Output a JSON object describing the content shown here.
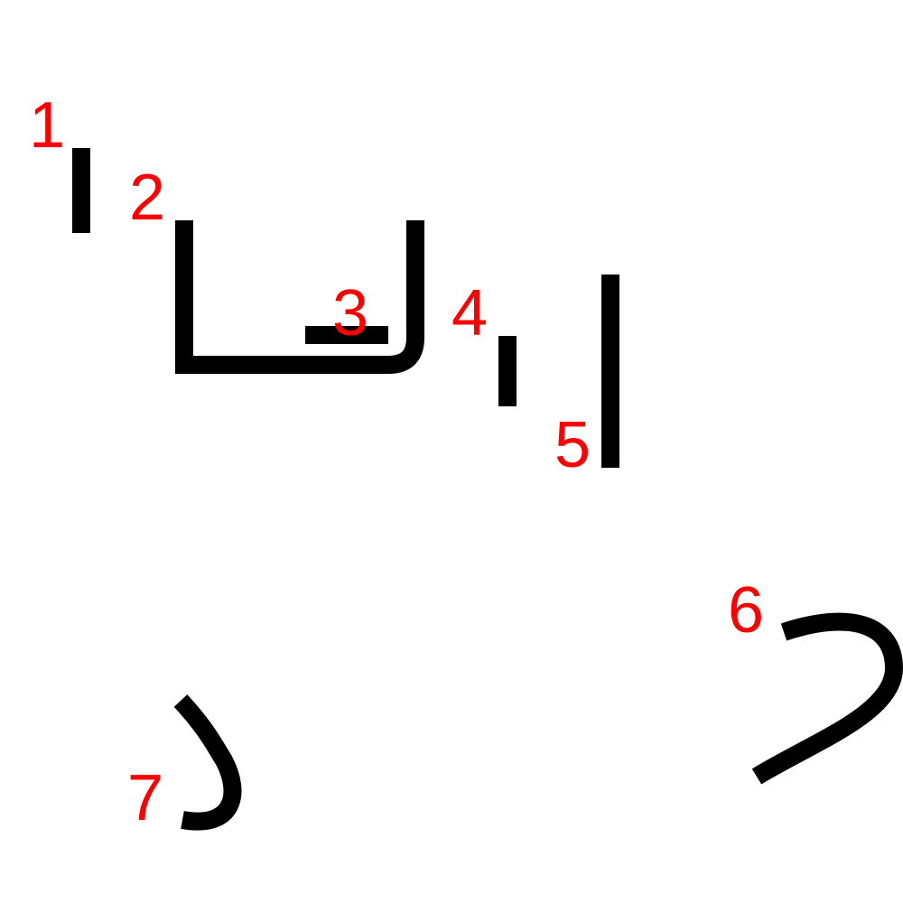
{
  "colors": {
    "stroke": "#000000",
    "label": "#ff0000",
    "background": "#ffffff"
  },
  "strokes": [
    {
      "label": "1"
    },
    {
      "label": "2"
    },
    {
      "label": "3"
    },
    {
      "label": "4"
    },
    {
      "label": "5"
    },
    {
      "label": "6"
    },
    {
      "label": "7"
    }
  ]
}
